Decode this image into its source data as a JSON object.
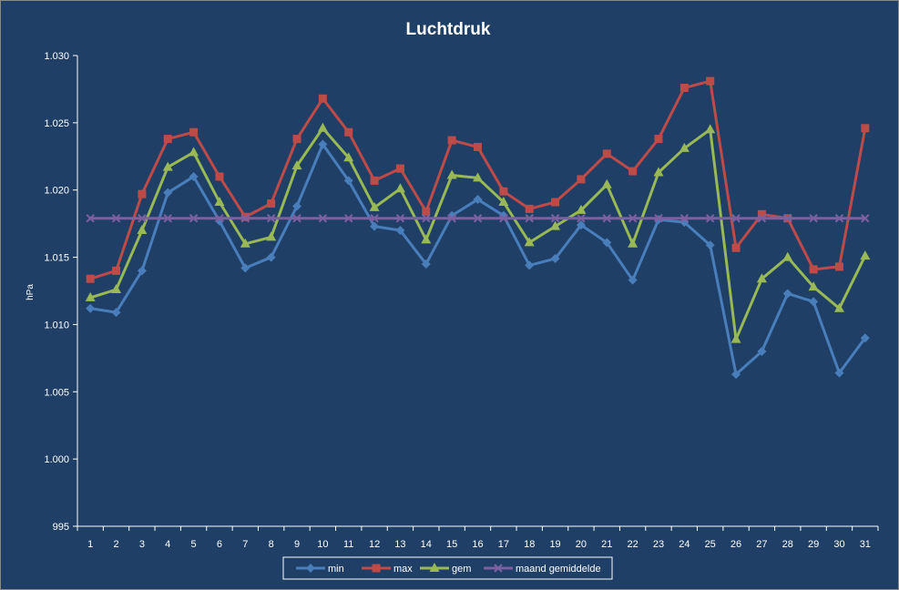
{
  "chart_data": {
    "type": "line",
    "title": "Luchtdruk",
    "ylabel": "hPa",
    "xlabel": "",
    "ylim": [
      995,
      1030
    ],
    "yticks": [
      995,
      1000,
      1005,
      1010,
      1015,
      1020,
      1025,
      1030
    ],
    "ytick_labels": [
      "995",
      "1.000",
      "1.005",
      "1.010",
      "1.015",
      "1.020",
      "1.025",
      "1.030"
    ],
    "categories": [
      "1",
      "2",
      "3",
      "4",
      "5",
      "6",
      "7",
      "8",
      "9",
      "10",
      "11",
      "12",
      "13",
      "14",
      "15",
      "16",
      "17",
      "18",
      "19",
      "20",
      "21",
      "22",
      "23",
      "24",
      "25",
      "26",
      "27",
      "28",
      "29",
      "30",
      "31"
    ],
    "grid": false,
    "legend_position": "bottom",
    "series": [
      {
        "name": "min",
        "color": "#4a7ebb",
        "marker": "diamond",
        "values": [
          1011.2,
          1010.9,
          1014.0,
          1019.8,
          1021.0,
          1017.7,
          1014.2,
          1015.0,
          1018.8,
          1023.4,
          1020.7,
          1017.3,
          1017.0,
          1014.5,
          1018.1,
          1019.3,
          1018.1,
          1014.4,
          1014.9,
          1017.4,
          1016.1,
          1013.3,
          1017.8,
          1017.6,
          1015.9,
          1006.3,
          1008.0,
          1012.3,
          1011.7,
          1006.4,
          1009.0
        ]
      },
      {
        "name": "max",
        "color": "#be4b48",
        "marker": "square",
        "values": [
          1013.4,
          1014.0,
          1019.7,
          1023.8,
          1024.3,
          1021.0,
          1018.0,
          1019.0,
          1023.8,
          1026.8,
          1024.3,
          1020.7,
          1021.6,
          1018.4,
          1023.7,
          1023.2,
          1019.9,
          1018.6,
          1019.1,
          1020.8,
          1022.7,
          1021.4,
          1023.8,
          1027.6,
          1028.1,
          1015.7,
          1018.2,
          1017.9,
          1014.1,
          1014.3,
          1024.6
        ]
      },
      {
        "name": "gem",
        "color": "#98b954",
        "marker": "triangle",
        "values": [
          1012.0,
          1012.6,
          1017.0,
          1021.7,
          1022.8,
          1019.1,
          1016.0,
          1016.5,
          1021.8,
          1024.6,
          1022.4,
          1018.7,
          1020.1,
          1016.3,
          1021.1,
          1020.9,
          1019.1,
          1016.1,
          1017.3,
          1018.5,
          1020.4,
          1016.0,
          1021.3,
          1023.1,
          1024.5,
          1008.9,
          1013.4,
          1015.0,
          1012.8,
          1011.2,
          1015.1
        ]
      },
      {
        "name": "maand gemiddelde",
        "color": "#7d60a0",
        "marker": "x",
        "values": [
          1017.9,
          1017.9,
          1017.9,
          1017.9,
          1017.9,
          1017.9,
          1017.9,
          1017.9,
          1017.9,
          1017.9,
          1017.9,
          1017.9,
          1017.9,
          1017.9,
          1017.9,
          1017.9,
          1017.9,
          1017.9,
          1017.9,
          1017.9,
          1017.9,
          1017.9,
          1017.9,
          1017.9,
          1017.9,
          1017.9,
          1017.9,
          1017.9,
          1017.9,
          1017.9,
          1017.9
        ]
      }
    ]
  }
}
